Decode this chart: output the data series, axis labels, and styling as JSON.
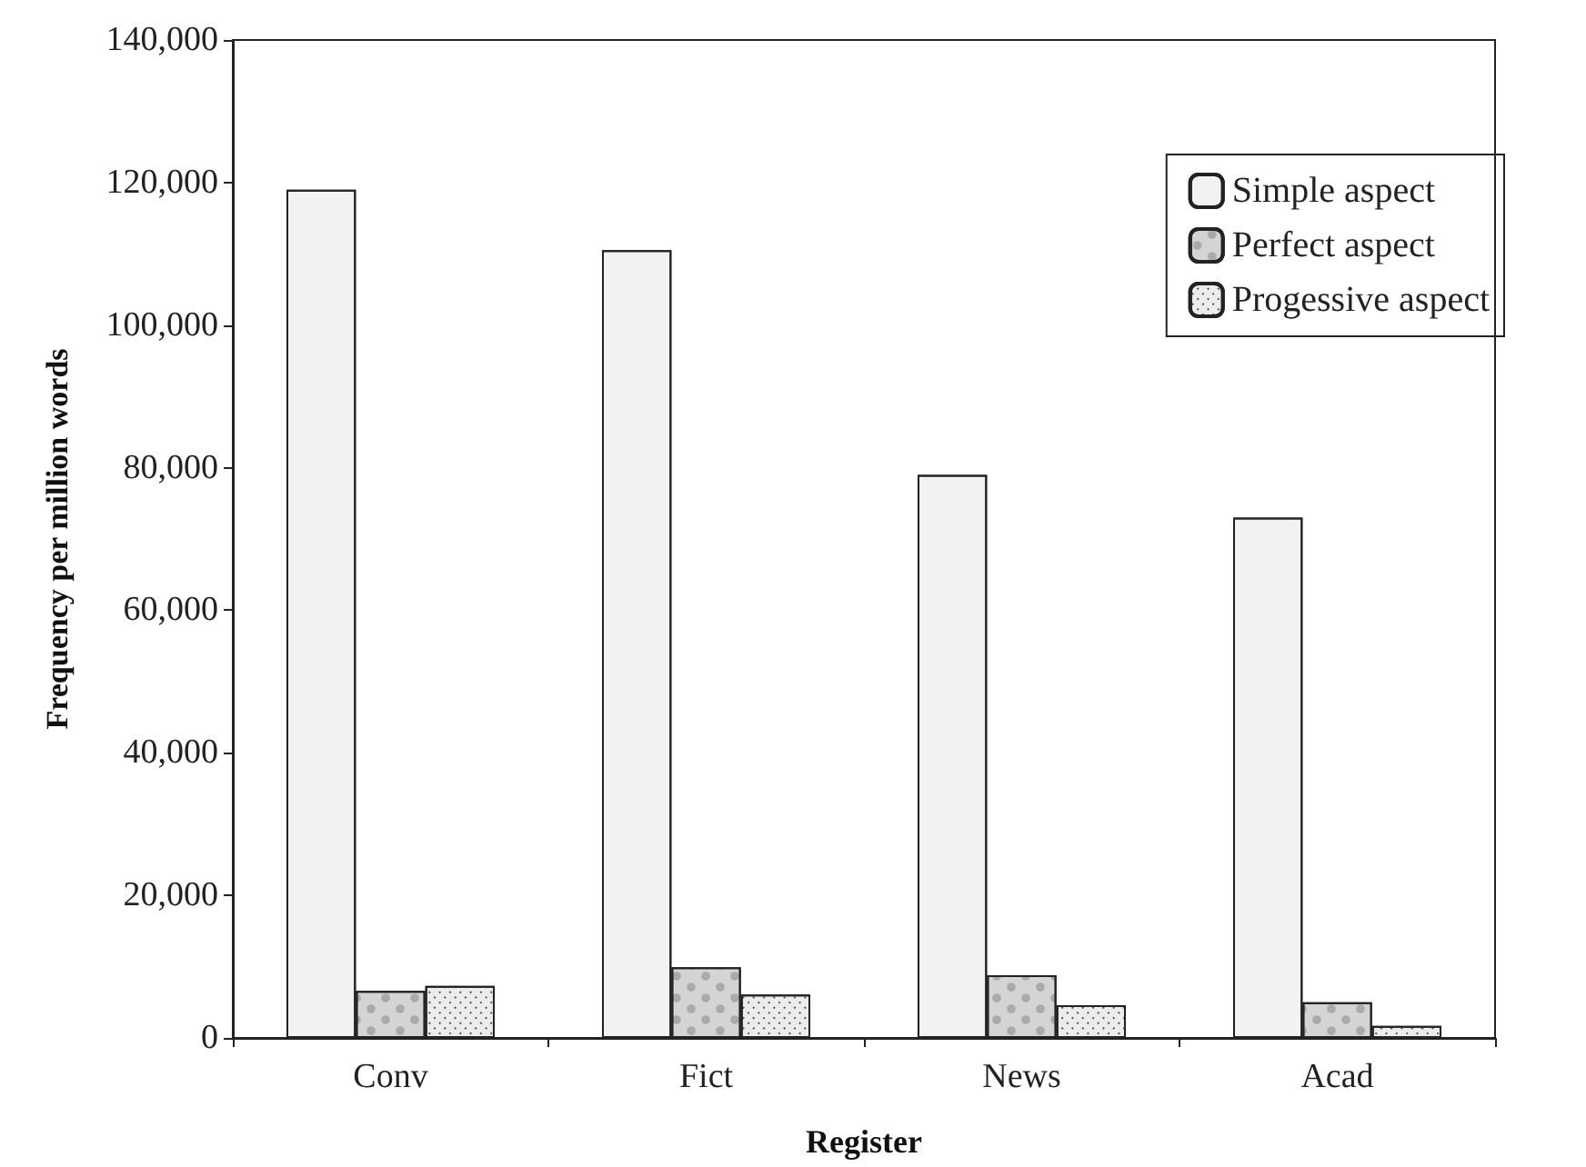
{
  "chart_data": {
    "type": "bar",
    "xlabel": "Register",
    "ylabel": "Frequency per million words",
    "categories": [
      "Conv",
      "Fict",
      "News",
      "Acad"
    ],
    "series": [
      {
        "name": "Simple aspect",
        "color": "#f2f2f2",
        "values": [
          119000,
          110500,
          79000,
          73000
        ]
      },
      {
        "name": "Perfect aspect",
        "color": "#d4d4d4",
        "values": [
          6600,
          9900,
          8800,
          5000
        ]
      },
      {
        "name": "Progessive aspect",
        "color": "#ececec",
        "values": [
          7300,
          6100,
          4600,
          1700
        ]
      }
    ],
    "ylim": [
      0,
      140000
    ],
    "yticks": [
      {
        "value": 0,
        "label": "0"
      },
      {
        "value": 20000,
        "label": "20,000"
      },
      {
        "value": 40000,
        "label": "40,000"
      },
      {
        "value": 60000,
        "label": "60,000"
      },
      {
        "value": 80000,
        "label": "80,000"
      },
      {
        "value": 100000,
        "label": "100,000"
      },
      {
        "value": 120000,
        "label": "120,000"
      },
      {
        "value": 140000,
        "label": "140,000"
      }
    ],
    "grid": false,
    "legend": "top right"
  }
}
